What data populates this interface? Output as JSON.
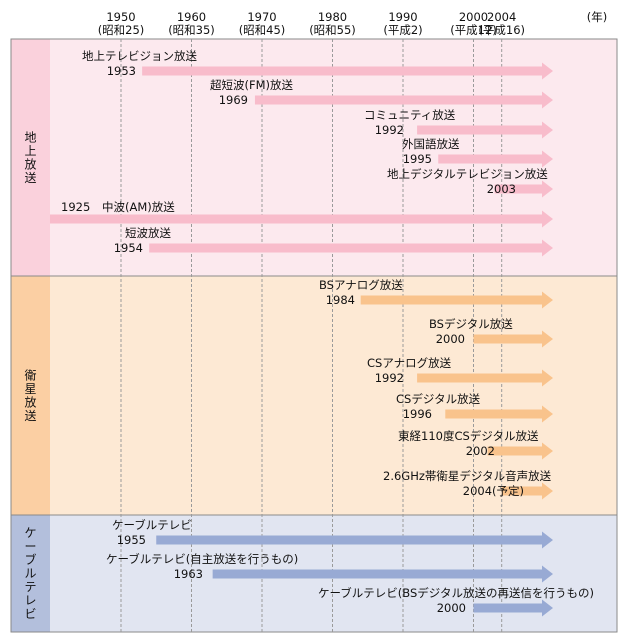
{
  "chart_data": {
    "type": "timeline",
    "unit_label": "(年)",
    "x_ticks": [
      {
        "year": 1950,
        "label": "1950",
        "era": "(昭和25)"
      },
      {
        "year": 1960,
        "label": "1960",
        "era": "(昭和35)"
      },
      {
        "year": 1970,
        "label": "1970",
        "era": "(昭和45)"
      },
      {
        "year": 1980,
        "label": "1980",
        "era": "(昭和55)"
      },
      {
        "year": 1990,
        "label": "1990",
        "era": "(平成2)"
      },
      {
        "year": 2000,
        "label": "2000",
        "era": "(平成12)"
      },
      {
        "year": 2004,
        "label": "2004",
        "era": "(平成16)"
      }
    ],
    "groups": [
      {
        "name": "地上放送",
        "colors": {
          "bg": "#fce9ee",
          "side": "#fad1dc",
          "arrow": "#f8bccb"
        },
        "items": [
          {
            "label": "地上テレビジョン放送",
            "start_label": "1953",
            "start": 1953
          },
          {
            "label": "超短波(FM)放送",
            "start_label": "1969",
            "start": 1969
          },
          {
            "label": "コミュニティ放送",
            "start_label": "1992",
            "start": 1992
          },
          {
            "label": "外国語放送",
            "start_label": "1995",
            "start": 1995
          },
          {
            "label": "地上デジタルテレビジョン放送",
            "start_label": "2003",
            "start": 2003
          },
          {
            "label": "中波(AM)放送",
            "start_label": "1925",
            "start": 1925,
            "inline": true
          },
          {
            "label": "短波放送",
            "start_label": "1954",
            "start": 1954
          }
        ]
      },
      {
        "name": "衛星放送",
        "colors": {
          "bg": "#fde9d4",
          "side": "#fbcfa3",
          "arrow": "#f9c38c"
        },
        "items": [
          {
            "label": "BSアナログ放送",
            "start_label": "1984",
            "start": 1984
          },
          {
            "label": "BSデジタル放送",
            "start_label": "2000",
            "start": 2000
          },
          {
            "label": "CSアナログ放送",
            "start_label": "1992",
            "start": 1992
          },
          {
            "label": "CSデジタル放送",
            "start_label": "1996",
            "start": 1996
          },
          {
            "label": "東経110度CSデジタル放送",
            "start_label": "2002",
            "start": 2002
          },
          {
            "label": "2.6GHz帯衛星デジタル音声放送",
            "start_label": "2004(予定)",
            "start": 2004
          }
        ]
      },
      {
        "name": "ケーブルテレビ",
        "colors": {
          "bg": "#e1e5f1",
          "side": "#b3bfdc",
          "arrow": "#98aad4"
        },
        "items": [
          {
            "label": "ケーブルテレビ",
            "start_label": "1955",
            "start": 1955
          },
          {
            "label": "ケーブルテレビ(自主放送を行うもの)",
            "start_label": "1963",
            "start": 1963
          },
          {
            "label": "ケーブルテレビ(BSデジタル放送の再送信を行うもの)",
            "start_label": "2000",
            "start": 2000
          }
        ]
      }
    ]
  }
}
